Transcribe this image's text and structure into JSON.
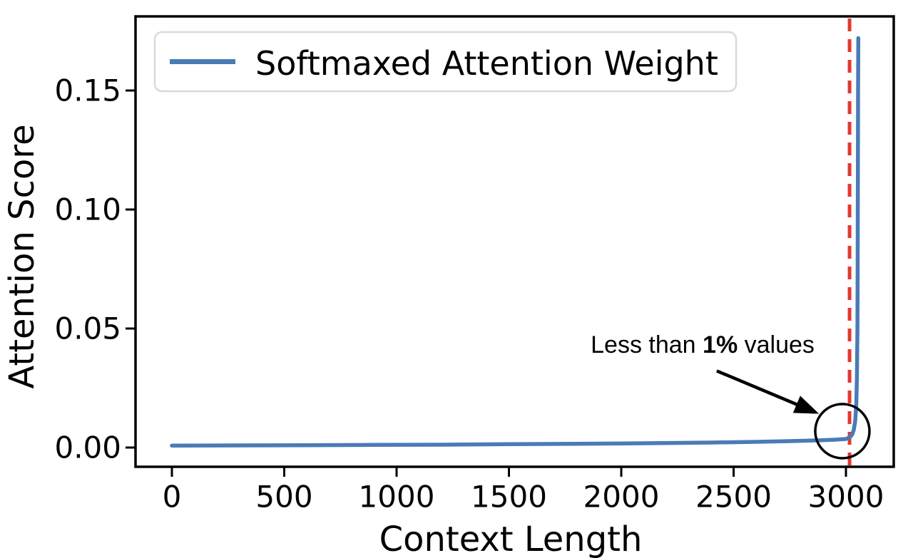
{
  "figure": {
    "background": "#ffffff",
    "axis_color": "#000000"
  },
  "chart_data": {
    "type": "line",
    "title": "",
    "xlabel": "Context Length",
    "ylabel": "Attention Score",
    "xlim": [
      -162,
      3213
    ],
    "ylim": [
      -0.008,
      0.181
    ],
    "x_ticks": [
      0,
      500,
      1000,
      1500,
      2000,
      2500,
      3000
    ],
    "y_ticks": [
      {
        "value": 0.0,
        "label": "0.00"
      },
      {
        "value": 0.05,
        "label": "0.05"
      },
      {
        "value": 0.1,
        "label": "0.10"
      },
      {
        "value": 0.15,
        "label": "0.15"
      }
    ],
    "grid": false,
    "legend": {
      "position": "upper left",
      "entries": [
        {
          "label": "Softmaxed Attention Weight",
          "color": "#4A7BB5"
        }
      ]
    },
    "series": [
      {
        "name": "Softmaxed Attention Weight",
        "color": "#4A7BB5",
        "x": [
          0,
          300,
          600,
          900,
          1200,
          1500,
          1800,
          2100,
          2400,
          2600,
          2750,
          2870,
          2950,
          3000,
          3010,
          3020,
          3028,
          3035,
          3041,
          3046,
          3049,
          3051,
          3052,
          3053,
          3054,
          3054.5,
          3055
        ],
        "y": [
          0.0008,
          0.0009,
          0.001,
          0.0011,
          0.0012,
          0.0014,
          0.0016,
          0.0018,
          0.0021,
          0.0024,
          0.0027,
          0.003,
          0.0033,
          0.0036,
          0.004,
          0.0046,
          0.0055,
          0.0075,
          0.011,
          0.018,
          0.03,
          0.05,
          0.075,
          0.11,
          0.15,
          0.163,
          0.172
        ]
      }
    ],
    "vline": {
      "x": 3016,
      "color": "#E3392E",
      "style": "dashed"
    },
    "annotation": {
      "text_prefix": "Less than ",
      "text_bold": "1%",
      "text_suffix": " values",
      "color": "#000000",
      "text_pos": {
        "x": 2362,
        "y": 0.0431
      },
      "arrow": {
        "from": {
          "x": 2425,
          "y": 0.0322
        },
        "to": {
          "x": 2880,
          "y": 0.0142
        }
      },
      "circle": {
        "x": 2984,
        "y": 0.0069,
        "radius_px": 38
      }
    }
  }
}
